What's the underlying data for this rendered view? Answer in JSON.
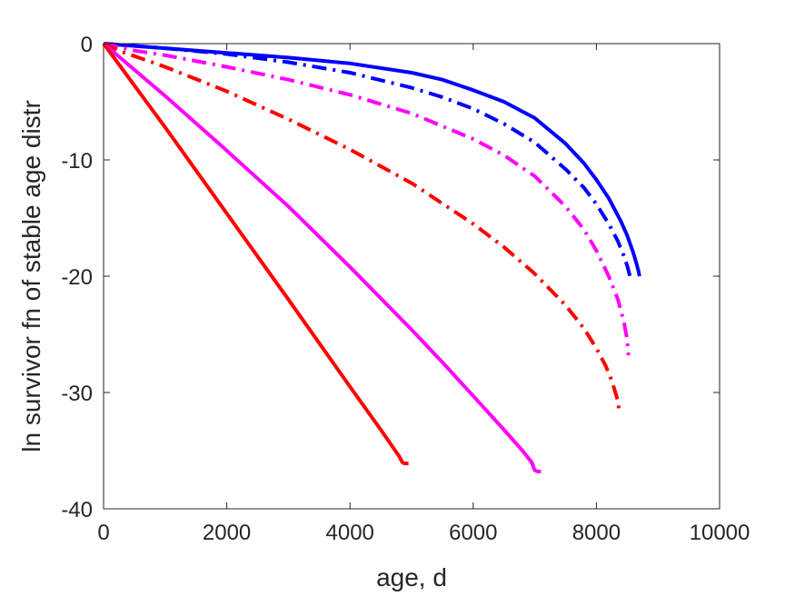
{
  "chart_data": {
    "type": "line",
    "title": "",
    "xlabel": "age, d",
    "ylabel": "ln survivor fn of stable age distr",
    "xlim": [
      0,
      10000
    ],
    "ylim": [
      -40,
      0
    ],
    "xticks": [
      0,
      2000,
      4000,
      6000,
      8000,
      10000
    ],
    "yticks": [
      0,
      -10,
      -20,
      -30,
      -40
    ],
    "xtick_labels": [
      "0",
      "2000",
      "4000",
      "6000",
      "8000",
      "10000"
    ],
    "ytick_labels": [
      "0",
      "-10",
      "-20",
      "-30",
      "-40"
    ],
    "grid": false,
    "legend": "none",
    "series": [
      {
        "color": "#0000ff",
        "style": "dashdot",
        "x": [
          0,
          1000,
          2000,
          3000,
          4000,
          5000,
          5500,
          6000,
          6500,
          7000,
          7500,
          7800,
          8000,
          8200,
          8350,
          8450,
          8500,
          8520,
          8540,
          8560
        ],
        "y": [
          0,
          -0.4,
          -0.9,
          -1.6,
          -2.5,
          -3.8,
          -4.6,
          -5.6,
          -6.9,
          -8.5,
          -10.8,
          -12.4,
          -13.8,
          -15.5,
          -17.0,
          -18.3,
          -19.1,
          -19.5,
          -19.9,
          -20.4
        ]
      },
      {
        "color": "#0000ff",
        "style": "solid",
        "x": [
          0,
          1000,
          2000,
          3000,
          4000,
          5000,
          5500,
          6000,
          6500,
          7000,
          7500,
          7800,
          8000,
          8200,
          8400,
          8500,
          8600,
          8650,
          8680,
          8700
        ],
        "y": [
          0,
          -0.4,
          -0.8,
          -1.2,
          -1.7,
          -2.5,
          -3.1,
          -4.0,
          -5.0,
          -6.4,
          -8.6,
          -10.3,
          -11.7,
          -13.3,
          -15.3,
          -16.5,
          -18.0,
          -18.9,
          -19.5,
          -20.0
        ]
      },
      {
        "color": "#ff00ff",
        "style": "dashdot",
        "x": [
          0,
          500,
          1000,
          2000,
          3000,
          4000,
          5000,
          6000,
          6500,
          7000,
          7500,
          7800,
          8000,
          8200,
          8350,
          8450,
          8500,
          8520
        ],
        "y": [
          0,
          -0.6,
          -1.0,
          -2.0,
          -3.1,
          -4.4,
          -6.0,
          -8.2,
          -9.6,
          -11.4,
          -14.0,
          -16.0,
          -17.8,
          -20.0,
          -22.0,
          -24.0,
          -25.5,
          -26.8
        ]
      },
      {
        "color": "#ff0000",
        "style": "dashdot",
        "x": [
          0,
          300,
          1000,
          2000,
          3000,
          4000,
          5000,
          6000,
          6500,
          7000,
          7500,
          7800,
          8000,
          8150,
          8250,
          8320,
          8350,
          8370
        ],
        "y": [
          0,
          -0.7,
          -2.0,
          -4.1,
          -6.5,
          -9.1,
          -12.0,
          -15.5,
          -17.5,
          -19.8,
          -22.5,
          -24.5,
          -26.2,
          -27.7,
          -29.0,
          -30.2,
          -30.8,
          -31.6
        ]
      },
      {
        "color": "#ff00ff",
        "style": "solid",
        "x": [
          0,
          1000,
          2000,
          3000,
          4000,
          5000,
          5500,
          6000,
          6500,
          6800,
          6950,
          7000,
          7050,
          7100
        ],
        "y": [
          0,
          -4.5,
          -9.2,
          -14.0,
          -19.2,
          -24.6,
          -27.4,
          -30.3,
          -33.2,
          -35.0,
          -36.0,
          -36.7,
          -36.8,
          -36.8
        ]
      },
      {
        "color": "#ff0000",
        "style": "solid",
        "x": [
          0,
          1000,
          2000,
          3000,
          4000,
          4500,
          4800,
          4850,
          4880,
          4950
        ],
        "y": [
          0,
          -7.2,
          -14.6,
          -22.0,
          -29.5,
          -33.2,
          -35.5,
          -36.0,
          -36.1,
          -36.1
        ]
      }
    ]
  }
}
